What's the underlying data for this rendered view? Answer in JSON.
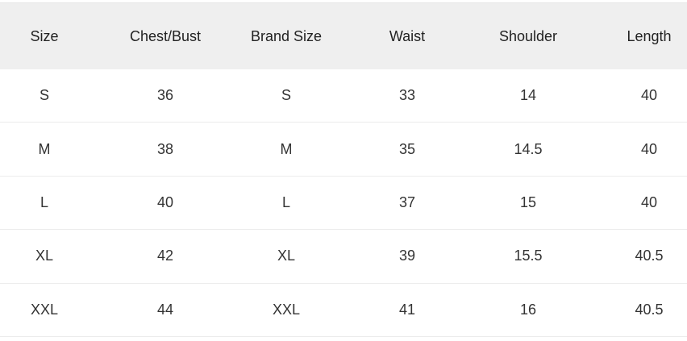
{
  "headers": [
    "Size",
    "Chest/Bust",
    "Brand Size",
    "Waist",
    "Shoulder",
    "Length"
  ],
  "rows": [
    [
      "S",
      "36",
      "S",
      "33",
      "14",
      "40"
    ],
    [
      "M",
      "38",
      "M",
      "35",
      "14.5",
      "40"
    ],
    [
      "L",
      "40",
      "L",
      "37",
      "15",
      "40"
    ],
    [
      "XL",
      "42",
      "XL",
      "39",
      "15.5",
      "40.5"
    ],
    [
      "XXL",
      "44",
      "XXL",
      "41",
      "16",
      "40.5"
    ]
  ]
}
